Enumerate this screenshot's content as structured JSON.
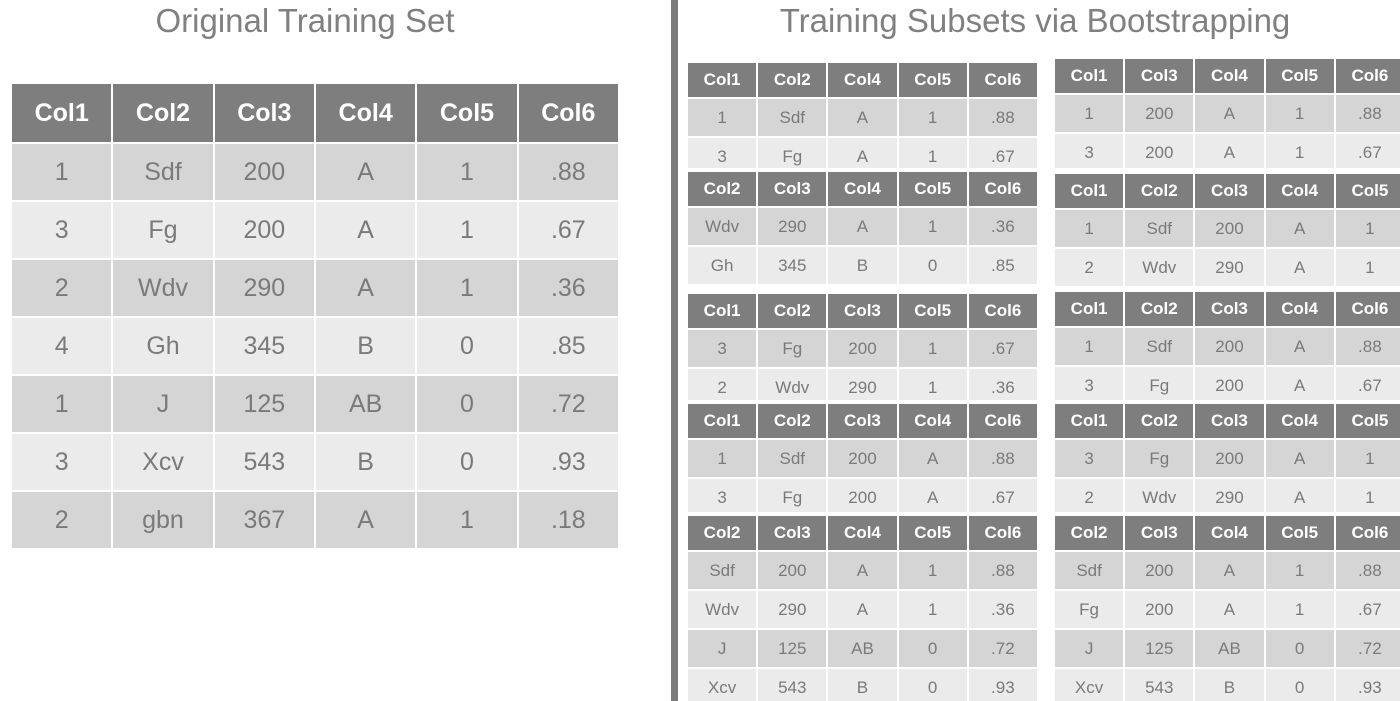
{
  "left": {
    "title": "Original Training Set",
    "headers": [
      "Col1",
      "Col2",
      "Col3",
      "Col4",
      "Col5",
      "Col6"
    ],
    "rows": [
      [
        "1",
        "Sdf",
        "200",
        "A",
        "1",
        ".88"
      ],
      [
        "3",
        "Fg",
        "200",
        "A",
        "1",
        ".67"
      ],
      [
        "2",
        "Wdv",
        "290",
        "A",
        "1",
        ".36"
      ],
      [
        "4",
        "Gh",
        "345",
        "B",
        "0",
        ".85"
      ],
      [
        "1",
        "J",
        "125",
        "AB",
        "0",
        ".72"
      ],
      [
        "3",
        "Xcv",
        "543",
        "B",
        "0",
        ".93"
      ],
      [
        "2",
        "gbn",
        "367",
        "A",
        "1",
        ".18"
      ]
    ]
  },
  "right": {
    "title": "Training Subsets via Bootstrapping",
    "subsets": [
      {
        "headers": [
          "Col1",
          "Col2",
          "Col4",
          "Col5",
          "Col6"
        ],
        "rows": [
          [
            "1",
            "Sdf",
            "A",
            "1",
            ".88"
          ],
          [
            "3",
            "Fg",
            "A",
            "1",
            ".67"
          ]
        ]
      },
      {
        "headers": [
          "Col1",
          "Col3",
          "Col4",
          "Col5",
          "Col6"
        ],
        "rows": [
          [
            "1",
            "200",
            "A",
            "1",
            ".88"
          ],
          [
            "3",
            "200",
            "A",
            "1",
            ".67"
          ]
        ]
      },
      {
        "headers": [
          "Col2",
          "Col3",
          "Col4",
          "Col5",
          "Col6"
        ],
        "rows": [
          [
            "Wdv",
            "290",
            "A",
            "1",
            ".36"
          ],
          [
            "Gh",
            "345",
            "B",
            "0",
            ".85"
          ]
        ]
      },
      {
        "headers": [
          "Col1",
          "Col2",
          "Col3",
          "Col4",
          "Col5"
        ],
        "rows": [
          [
            "1",
            "Sdf",
            "200",
            "A",
            "1"
          ],
          [
            "2",
            "Wdv",
            "290",
            "A",
            "1"
          ]
        ]
      },
      {
        "headers": [
          "Col1",
          "Col2",
          "Col3",
          "Col5",
          "Col6"
        ],
        "rows": [
          [
            "3",
            "Fg",
            "200",
            "1",
            ".67"
          ],
          [
            "2",
            "Wdv",
            "290",
            "1",
            ".36"
          ]
        ]
      },
      {
        "headers": [
          "Col1",
          "Col2",
          "Col3",
          "Col4",
          "Col6"
        ],
        "rows": [
          [
            "1",
            "Sdf",
            "200",
            "A",
            ".88"
          ],
          [
            "3",
            "Fg",
            "200",
            "A",
            ".67"
          ]
        ]
      },
      {
        "headers": [
          "Col1",
          "Col2",
          "Col3",
          "Col4",
          "Col6"
        ],
        "rows": [
          [
            "1",
            "Sdf",
            "200",
            "A",
            ".88"
          ],
          [
            "3",
            "Fg",
            "200",
            "A",
            ".67"
          ]
        ]
      },
      {
        "headers": [
          "Col1",
          "Col2",
          "Col3",
          "Col4",
          "Col5"
        ],
        "rows": [
          [
            "3",
            "Fg",
            "200",
            "A",
            "1"
          ],
          [
            "2",
            "Wdv",
            "290",
            "A",
            "1"
          ]
        ]
      },
      {
        "headers": [
          "Col2",
          "Col3",
          "Col4",
          "Col5",
          "Col6"
        ],
        "rows": [
          [
            "Sdf",
            "200",
            "A",
            "1",
            ".88"
          ],
          [
            "Wdv",
            "290",
            "A",
            "1",
            ".36"
          ],
          [
            "J",
            "125",
            "AB",
            "0",
            ".72"
          ],
          [
            "Xcv",
            "543",
            "B",
            "0",
            ".93"
          ]
        ]
      },
      {
        "headers": [
          "Col2",
          "Col3",
          "Col4",
          "Col5",
          "Col6"
        ],
        "rows": [
          [
            "Sdf",
            "200",
            "A",
            "1",
            ".88"
          ],
          [
            "Fg",
            "200",
            "A",
            "1",
            ".67"
          ],
          [
            "J",
            "125",
            "AB",
            "0",
            ".72"
          ],
          [
            "Xcv",
            "543",
            "B",
            "0",
            ".93"
          ]
        ]
      }
    ]
  }
}
